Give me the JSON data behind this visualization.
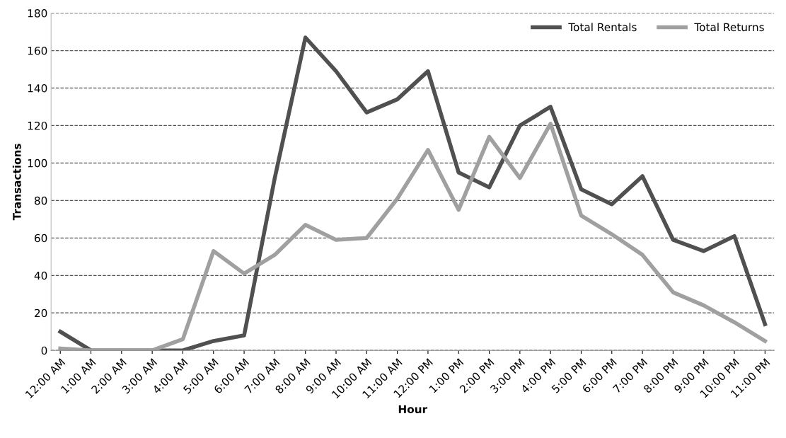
{
  "chart_data": {
    "type": "line",
    "xlabel": "Hour",
    "ylabel": "Transactions",
    "categories": [
      "12:00 AM",
      "1:00 AM",
      "2:00 AM",
      "3:00 AM",
      "4:00 AM",
      "5:00 AM",
      "6:00 AM",
      "7:00 AM",
      "8:00 AM",
      "9:00 AM",
      "10:00 AM",
      "11:00 AM",
      "12:00 PM",
      "1:00 PM",
      "2:00 PM",
      "3:00 PM",
      "4:00 PM",
      "5:00 PM",
      "6:00 PM",
      "7:00 PM",
      "8:00 PM",
      "9:00 PM",
      "10:00 PM",
      "11:00 PM"
    ],
    "series": [
      {
        "name": "Total Rentals",
        "color": "#505050",
        "values": [
          10,
          0,
          0,
          0,
          0,
          5,
          8,
          92,
          167,
          149,
          127,
          134,
          149,
          95,
          87,
          120,
          130,
          86,
          78,
          93,
          59,
          53,
          61,
          14
        ]
      },
      {
        "name": "Total Returns",
        "color": "#a0a0a0",
        "values": [
          1,
          0,
          0,
          0,
          6,
          53,
          41,
          51,
          67,
          59,
          60,
          81,
          107,
          75,
          114,
          92,
          121,
          72,
          62,
          51,
          31,
          24,
          15,
          5
        ]
      }
    ],
    "ylim": [
      0,
      180
    ],
    "yticks": [
      0,
      20,
      40,
      60,
      80,
      100,
      120,
      140,
      160,
      180
    ],
    "grid": "y",
    "legend": "top right",
    "marker": "none",
    "line_style": "solid"
  }
}
